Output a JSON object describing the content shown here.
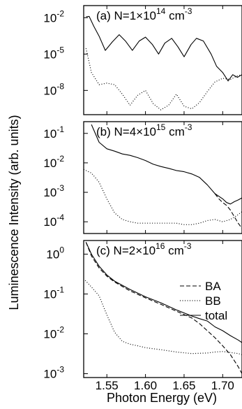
{
  "chart_data": {
    "type": "line",
    "xlabel": "Photon Energy (eV)",
    "ylabel": "Luminescence Intensity (arb. units)",
    "xlim": [
      1.52,
      1.725
    ],
    "x_ticks": [
      "1.55",
      "1.60",
      "1.65",
      "1.70"
    ],
    "x_tick_values": [
      1.55,
      1.6,
      1.65,
      1.7
    ],
    "y_scale": "log",
    "legend": {
      "entries": [
        "BA",
        "BB",
        "total"
      ],
      "placement": "right"
    },
    "panels": [
      {
        "label": "(a) N=1×10",
        "label_exp": "14",
        "label_unit": " cm",
        "label_unit_exp": "-3",
        "ylim": [
          1e-10,
          0.1
        ],
        "y_ticks": [
          {
            "base": "10",
            "exp": "-2",
            "value": 0.01
          },
          {
            "base": "10",
            "exp": "-5",
            "value": 1e-05
          },
          {
            "base": "10",
            "exp": "-8",
            "value": 1e-08
          }
        ],
        "series": [
          {
            "style": "solid",
            "x": [
              1.523,
              1.527,
              1.533,
              1.54,
              1.548,
              1.557,
              1.566,
              1.574,
              1.583,
              1.592,
              1.6,
              1.609,
              1.617,
              1.625,
              1.634,
              1.642,
              1.65,
              1.659,
              1.666,
              1.675,
              1.685,
              1.692,
              1.7,
              1.707,
              1.713,
              1.719,
              1.725
            ],
            "y": [
              0.012,
              0.013,
              0.002,
              0.0003,
              2e-05,
              0.0001,
              0.0004,
              0.00012,
              2e-05,
              0.00012,
              0.00025,
              6e-05,
              1e-05,
              8e-05,
              0.0002,
              4e-05,
              6e-06,
              6e-05,
              0.0002,
              0.00012,
              1e-05,
              1e-06,
              3e-07,
              6e-08,
              2e-07,
              1.2e-07,
              2e-07
            ]
          },
          {
            "style": "dotted",
            "x": [
              1.523,
              1.53,
              1.54,
              1.55,
              1.56,
              1.57,
              1.58,
              1.59,
              1.6,
              1.61,
              1.62,
              1.63,
              1.64,
              1.65,
              1.66,
              1.67,
              1.68,
              1.69,
              1.7,
              1.71,
              1.718,
              1.725
            ],
            "y": [
              3e-05,
              3e-07,
              3e-08,
              4e-08,
              3e-08,
              5e-09,
              6e-10,
              4e-09,
              1e-08,
              8e-10,
              2.5e-10,
              6e-10,
              5e-09,
              5e-10,
              3e-10,
              1e-09,
              8e-09,
              5e-08,
              1e-07,
              8e-08,
              1.5e-07,
              2e-07
            ]
          }
        ]
      },
      {
        "label": "(b) N=4×10",
        "label_exp": "15",
        "label_unit": " cm",
        "label_unit_exp": "-3",
        "ylim": [
          4e-05,
          0.25
        ],
        "y_ticks": [
          {
            "base": "10",
            "exp": "-1",
            "value": 0.1
          },
          {
            "base": "10",
            "exp": "-2",
            "value": 0.01
          },
          {
            "base": "10",
            "exp": "-3",
            "value": 0.001
          },
          {
            "base": "10",
            "exp": "-4",
            "value": 0.0001
          }
        ],
        "series": [
          {
            "style": "solid",
            "x": [
              1.53,
              1.54,
              1.55,
              1.56,
              1.57,
              1.58,
              1.59,
              1.6,
              1.61,
              1.62,
              1.63,
              1.64,
              1.65,
              1.66,
              1.67,
              1.68,
              1.69,
              1.7,
              1.705,
              1.71,
              1.715,
              1.72,
              1.725
            ],
            "y": [
              0.2,
              0.05,
              0.03,
              0.025,
              0.02,
              0.018,
              0.015,
              0.012,
              0.009,
              0.0075,
              0.0065,
              0.0055,
              0.005,
              0.0042,
              0.0032,
              0.0018,
              0.0009,
              0.0006,
              0.00045,
              0.0004,
              0.00048,
              0.00055,
              0.00065
            ]
          },
          {
            "style": "dashed",
            "x": [
              1.69,
              1.695,
              1.7,
              1.705,
              1.71,
              1.715,
              1.72,
              1.725
            ],
            "y": [
              0.0009,
              0.0006,
              0.00045,
              0.00036,
              0.00025,
              0.00015,
              9e-05,
              6e-05
            ]
          },
          {
            "style": "dotted",
            "x": [
              1.52,
              1.53,
              1.54,
              1.55,
              1.56,
              1.57,
              1.58,
              1.59,
              1.6,
              1.61,
              1.62,
              1.63,
              1.64,
              1.65,
              1.66,
              1.67,
              1.68,
              1.69,
              1.7,
              1.71,
              1.718,
              1.725
            ],
            "y": [
              0.006,
              0.0045,
              0.0022,
              0.0006,
              0.0002,
              0.00012,
              0.0001,
              9e-05,
              9e-05,
              9e-05,
              9e-05,
              9e-05,
              9e-05,
              8e-05,
              8e-05,
              9e-05,
              0.00011,
              0.00012,
              0.0001,
              0.00012,
              0.00016,
              0.00022
            ]
          }
        ]
      },
      {
        "label": "(c) N=2×10",
        "label_exp": "16",
        "label_unit": " cm",
        "label_unit_exp": "-3",
        "ylim": [
          0.0008,
          2.2
        ],
        "y_ticks": [
          {
            "base": "10",
            "exp": "0",
            "value": 1
          },
          {
            "base": "10",
            "exp": "-1",
            "value": 0.1
          },
          {
            "base": "10",
            "exp": "-2",
            "value": 0.01
          },
          {
            "base": "10",
            "exp": "-3",
            "value": 0.001
          }
        ],
        "series": [
          {
            "name": "BA",
            "style": "dashed",
            "x": [
              1.523,
              1.53,
              1.54,
              1.55,
              1.56,
              1.58,
              1.6,
              1.62,
              1.64,
              1.66,
              1.67,
              1.68,
              1.69,
              1.7,
              1.71,
              1.72,
              1.725
            ],
            "y": [
              2.0,
              0.9,
              0.45,
              0.28,
              0.2,
              0.12,
              0.08,
              0.055,
              0.037,
              0.025,
              0.018,
              0.012,
              0.008,
              0.005,
              0.003,
              0.0015,
              0.001
            ]
          },
          {
            "name": "BB",
            "style": "dotted",
            "x": [
              1.522,
              1.53,
              1.54,
              1.55,
              1.56,
              1.57,
              1.58,
              1.59,
              1.6,
              1.62,
              1.64,
              1.66,
              1.68,
              1.69,
              1.7,
              1.71,
              1.72,
              1.725
            ],
            "y": [
              0.22,
              0.15,
              0.09,
              0.03,
              0.011,
              0.0065,
              0.0055,
              0.005,
              0.0045,
              0.004,
              0.0035,
              0.0032,
              0.0033,
              0.0035,
              0.0036,
              0.0034,
              0.0032,
              0.003
            ]
          },
          {
            "name": "total",
            "style": "solid",
            "x": [
              1.523,
              1.53,
              1.54,
              1.55,
              1.56,
              1.58,
              1.6,
              1.62,
              1.64,
              1.66,
              1.67,
              1.68,
              1.69,
              1.7,
              1.71,
              1.72,
              1.725
            ],
            "y": [
              2.0,
              1.0,
              0.5,
              0.3,
              0.21,
              0.13,
              0.085,
              0.06,
              0.04,
              0.028,
              0.024,
              0.021,
              0.015,
              0.012,
              0.009,
              0.007,
              0.006
            ]
          }
        ]
      }
    ]
  }
}
